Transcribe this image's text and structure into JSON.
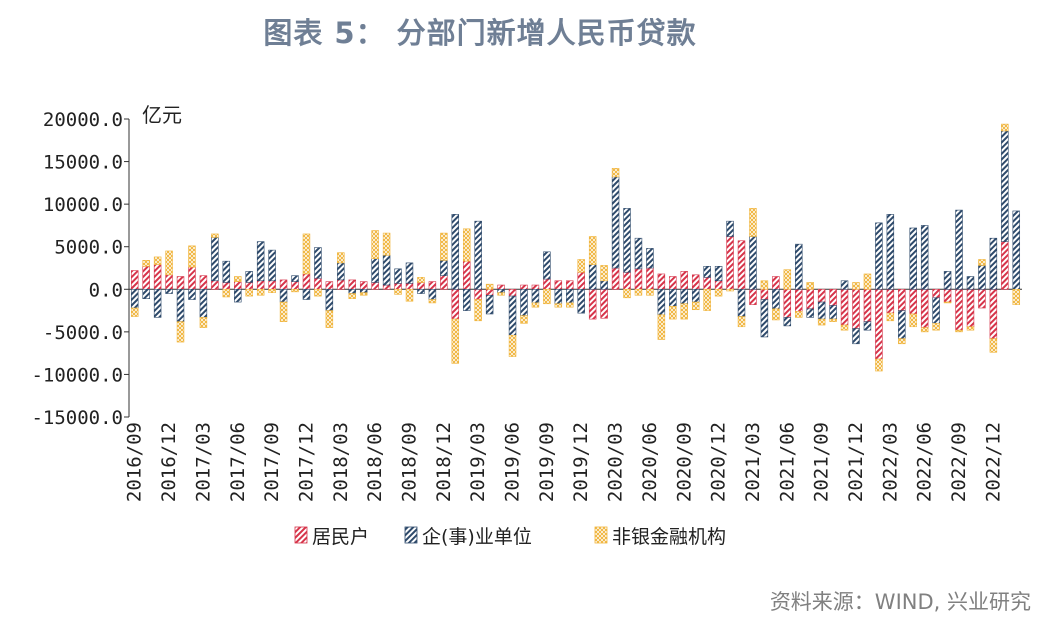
{
  "title": "图表 5： 分部门新增人民币贷款",
  "source": "资料来源：WIND, 兴业研究",
  "colors": {
    "household": "#d6344a",
    "enterprise": "#2e4a6b",
    "nonbank": "#f0b43a"
  },
  "chart_data": {
    "type": "bar",
    "stacked": true,
    "title": "图表 5： 分部门新增人民币贷款",
    "ylabel": "亿元",
    "ylim": [
      -15000,
      20000
    ],
    "yticks": [
      "20000.0",
      "15000.0",
      "10000.0",
      "5000.0",
      "0.0",
      "-5000.0",
      "-10000.0",
      "-15000.0"
    ],
    "grid": false,
    "legend": "bottom",
    "xtick_labels": [
      "2016/09",
      "2016/12",
      "2017/03",
      "2017/06",
      "2017/09",
      "2017/12",
      "2018/03",
      "2018/06",
      "2018/09",
      "2018/12",
      "2019/03",
      "2019/06",
      "2019/09",
      "2019/12",
      "2020/03",
      "2020/06",
      "2020/09",
      "2020/12",
      "2021/03",
      "2021/06",
      "2021/09",
      "2021/12",
      "2022/03",
      "2022/06",
      "2022/09",
      "2022/12"
    ],
    "categories": [
      "2016/09",
      "2016/10",
      "2016/11",
      "2016/12",
      "2017/01",
      "2017/02",
      "2017/03",
      "2017/04",
      "2017/05",
      "2017/06",
      "2017/07",
      "2017/08",
      "2017/09",
      "2017/10",
      "2017/11",
      "2017/12",
      "2018/01",
      "2018/02",
      "2018/03",
      "2018/04",
      "2018/05",
      "2018/06",
      "2018/07",
      "2018/08",
      "2018/09",
      "2018/10",
      "2018/11",
      "2018/12",
      "2019/01",
      "2019/02",
      "2019/03",
      "2019/04",
      "2019/05",
      "2019/06",
      "2019/07",
      "2019/08",
      "2019/09",
      "2019/10",
      "2019/11",
      "2019/12",
      "2020/01",
      "2020/02",
      "2020/03",
      "2020/04",
      "2020/05",
      "2020/06",
      "2020/07",
      "2020/08",
      "2020/09",
      "2020/10",
      "2020/11",
      "2020/12",
      "2021/01",
      "2021/02",
      "2021/03",
      "2021/04",
      "2021/05",
      "2021/06",
      "2021/07",
      "2021/08",
      "2021/09",
      "2021/10",
      "2021/11",
      "2021/12",
      "2022/01",
      "2022/02",
      "2022/03",
      "2022/04",
      "2022/05",
      "2022/06",
      "2022/07",
      "2022/08",
      "2022/09",
      "2022/10",
      "2022/11",
      "2022/12",
      "2023/01",
      "2023/02"
    ],
    "series": [
      {
        "name": "居民户",
        "key": "household",
        "values": [
          2200,
          2700,
          2900,
          1700,
          1500,
          2600,
          1600,
          1000,
          800,
          900,
          800,
          1000,
          1000,
          1100,
          900,
          1800,
          1300,
          900,
          1100,
          1100,
          900,
          800,
          500,
          700,
          700,
          800,
          900,
          1600,
          -3500,
          3300,
          -1200,
          -700,
          500,
          -800,
          500,
          500,
          1200,
          1000,
          1000,
          2000,
          -3500,
          -3400,
          2500,
          2000,
          2400,
          2500,
          1800,
          1500,
          2100,
          1700,
          1400,
          1000,
          6200,
          5700,
          -1800,
          -1200,
          1500,
          -3300,
          -2600,
          -2300,
          -1500,
          -1900,
          -4200,
          -4600,
          -3800,
          -8200,
          -2800,
          -2500,
          -2900,
          -4500,
          -1000,
          -1500,
          -4800,
          -4400,
          -2200,
          -5800,
          5600,
          0
        ]
      },
      {
        "name": "企(事)业单位",
        "key": "enterprise",
        "values": [
          -2200,
          -1100,
          -3300,
          -500,
          -3800,
          -1200,
          -3300,
          5100,
          2500,
          -1500,
          1300,
          4600,
          3600,
          -1500,
          700,
          -1200,
          3600,
          -2500,
          2000,
          -500,
          -400,
          2800,
          3500,
          1700,
          2400,
          -500,
          -1200,
          1800,
          8800,
          -2500,
          8000,
          -2200,
          -400,
          -4600,
          -3100,
          -1600,
          3200,
          -1700,
          -1600,
          -2800,
          2900,
          1000,
          10700,
          7500,
          3600,
          2300,
          -3000,
          -2000,
          -1700,
          -1500,
          1300,
          1700,
          1800,
          -3200,
          6200,
          -4400,
          -2300,
          -1000,
          5300,
          -1000,
          -2000,
          -1600,
          1000,
          -1800,
          -1000,
          7800,
          8800,
          -3300,
          7200,
          7500,
          -3000,
          2100,
          9300,
          1500,
          2800,
          6000,
          13000,
          9200
        ]
      },
      {
        "name": "非银金融机构",
        "key": "nonbank",
        "values": [
          -1000,
          700,
          900,
          2800,
          -2400,
          2500,
          -1200,
          400,
          -900,
          600,
          -800,
          -700,
          -400,
          -2300,
          -300,
          4700,
          -800,
          -2000,
          1200,
          -600,
          -300,
          3300,
          2600,
          -600,
          -1400,
          600,
          -400,
          3200,
          -5200,
          3800,
          -2500,
          600,
          -300,
          -2500,
          -900,
          -500,
          -1700,
          -400,
          -500,
          1500,
          3300,
          1800,
          1000,
          -1000,
          -700,
          -700,
          -2900,
          -1500,
          -1800,
          -900,
          -2500,
          -800,
          -200,
          -1200,
          3300,
          1000,
          -1300,
          2300,
          -700,
          800,
          -700,
          -300,
          -600,
          800,
          1800,
          -1400,
          -900,
          -600,
          -1500,
          -500,
          -800,
          -100,
          -200,
          -400,
          700,
          -1600,
          800,
          -1800
        ]
      }
    ]
  },
  "legend": {
    "items": [
      {
        "label": "居民户"
      },
      {
        "label": "企(事)业单位"
      },
      {
        "label": "非银金融机构"
      }
    ]
  }
}
